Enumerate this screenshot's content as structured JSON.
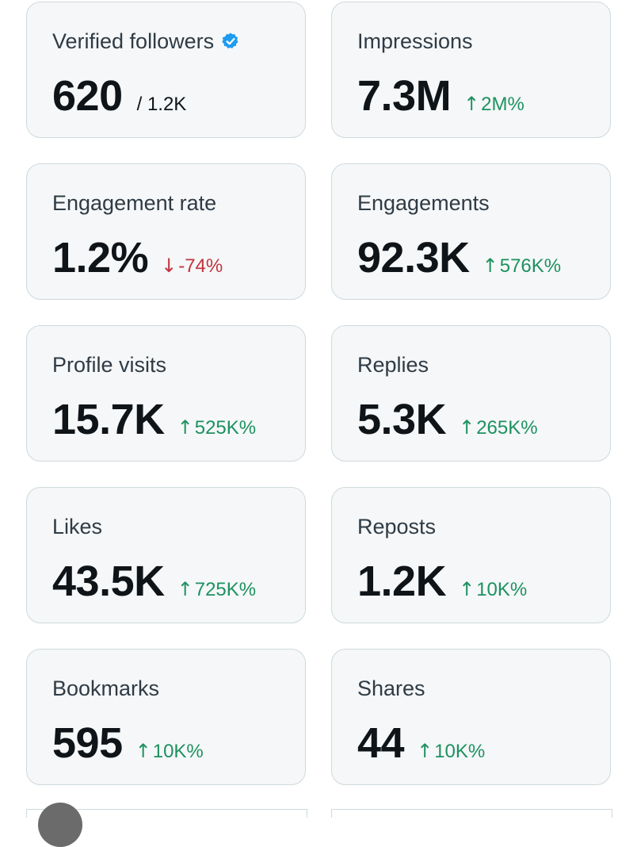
{
  "colors": {
    "up": "#1e9160",
    "down": "#c4323f",
    "verified": "#1d9bf0"
  },
  "cards": [
    {
      "label": "Verified followers",
      "value": "620",
      "sub": "/ 1.2K",
      "icon": "verified-badge-icon"
    },
    {
      "label": "Impressions",
      "value": "7.3M",
      "change": "2M%",
      "direction": "up"
    },
    {
      "label": "Engagement rate",
      "value": "1.2%",
      "change": "-74%",
      "direction": "down"
    },
    {
      "label": "Engagements",
      "value": "92.3K",
      "change": "576K%",
      "direction": "up"
    },
    {
      "label": "Profile visits",
      "value": "15.7K",
      "change": "525K%",
      "direction": "up"
    },
    {
      "label": "Replies",
      "value": "5.3K",
      "change": "265K%",
      "direction": "up"
    },
    {
      "label": "Likes",
      "value": "43.5K",
      "change": "725K%",
      "direction": "up"
    },
    {
      "label": "Reposts",
      "value": "1.2K",
      "change": "10K%",
      "direction": "up"
    },
    {
      "label": "Bookmarks",
      "value": "595",
      "change": "10K%",
      "direction": "up"
    },
    {
      "label": "Shares",
      "value": "44",
      "change": "10K%",
      "direction": "up"
    }
  ]
}
